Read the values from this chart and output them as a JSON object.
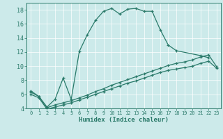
{
  "xlabel": "Humidex (Indice chaleur)",
  "background_color": "#cceaea",
  "line_color": "#2a7a6a",
  "grid_color": "#ffffff",
  "xlim": [
    -0.5,
    23.5
  ],
  "ylim": [
    4,
    19
  ],
  "xticks": [
    0,
    1,
    2,
    3,
    4,
    5,
    6,
    7,
    8,
    9,
    10,
    11,
    12,
    13,
    14,
    15,
    16,
    17,
    18,
    19,
    20,
    21,
    22,
    23
  ],
  "yticks": [
    4,
    6,
    8,
    10,
    12,
    14,
    16,
    18
  ],
  "curve1_x": [
    0,
    1,
    2,
    3,
    4,
    5,
    6,
    7,
    8,
    9,
    10,
    11,
    12,
    13,
    14,
    15,
    16,
    17,
    18,
    21,
    22
  ],
  "curve1_y": [
    6.5,
    5.7,
    4.2,
    5.3,
    8.3,
    5.3,
    12.1,
    14.5,
    16.5,
    17.8,
    18.2,
    17.4,
    18.1,
    18.2,
    17.8,
    17.8,
    15.2,
    13.0,
    12.2,
    11.5,
    11.2
  ],
  "curve2_x": [
    0,
    1,
    2,
    3,
    4,
    5,
    6,
    7,
    8,
    9,
    10,
    11,
    12,
    13,
    14,
    15,
    16,
    17,
    18,
    19,
    20,
    21,
    22,
    23
  ],
  "curve2_y": [
    6.3,
    5.7,
    4.1,
    4.5,
    4.8,
    5.1,
    5.5,
    5.9,
    6.4,
    6.8,
    7.3,
    7.7,
    8.1,
    8.5,
    8.9,
    9.3,
    9.7,
    10.1,
    10.4,
    10.6,
    10.9,
    11.3,
    11.6,
    9.9
  ],
  "curve3_x": [
    0,
    1,
    2,
    3,
    4,
    5,
    6,
    7,
    8,
    9,
    10,
    11,
    12,
    13,
    14,
    15,
    16,
    17,
    18,
    19,
    20,
    21,
    22,
    23
  ],
  "curve3_y": [
    6.0,
    5.5,
    3.9,
    4.2,
    4.5,
    4.8,
    5.2,
    5.6,
    6.0,
    6.4,
    6.8,
    7.2,
    7.6,
    7.9,
    8.3,
    8.7,
    9.1,
    9.4,
    9.6,
    9.8,
    10.0,
    10.4,
    10.7,
    9.7
  ]
}
